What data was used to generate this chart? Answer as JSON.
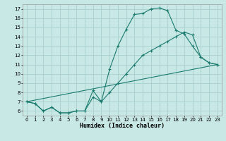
{
  "xlabel": "Humidex (Indice chaleur)",
  "bg_color": "#c8e8e5",
  "grid_color": "#a8d0cd",
  "line_color": "#1a7a6e",
  "xlim": [
    -0.5,
    23.5
  ],
  "ylim": [
    5.5,
    17.5
  ],
  "xticks": [
    0,
    1,
    2,
    3,
    4,
    5,
    6,
    7,
    8,
    9,
    10,
    11,
    12,
    13,
    14,
    15,
    16,
    17,
    18,
    19,
    20,
    21,
    22,
    23
  ],
  "yticks": [
    6,
    7,
    8,
    9,
    10,
    11,
    12,
    13,
    14,
    15,
    16,
    17
  ],
  "line1_x": [
    0,
    1,
    2,
    3,
    4,
    5,
    6,
    7,
    8,
    9,
    10,
    11,
    12,
    13,
    14,
    15,
    16,
    17,
    18,
    19,
    20,
    21,
    22,
    23
  ],
  "line1_y": [
    7.0,
    6.8,
    6.0,
    6.4,
    5.8,
    5.8,
    6.0,
    6.0,
    8.2,
    7.0,
    10.5,
    13.0,
    14.8,
    16.4,
    16.5,
    17.0,
    17.1,
    16.8,
    14.7,
    14.3,
    13.0,
    11.8,
    11.2,
    11.0
  ],
  "line2_x": [
    0,
    1,
    2,
    3,
    4,
    5,
    6,
    7,
    8,
    9,
    10,
    11,
    12,
    13,
    14,
    15,
    16,
    17,
    18,
    19,
    20,
    21,
    22,
    23
  ],
  "line2_y": [
    7.0,
    6.8,
    6.0,
    6.4,
    5.8,
    5.8,
    6.0,
    6.0,
    7.5,
    7.0,
    8.0,
    9.0,
    10.0,
    11.0,
    12.0,
    12.5,
    13.0,
    13.5,
    14.0,
    14.5,
    14.2,
    11.8,
    11.2,
    11.0
  ],
  "line3_x": [
    0,
    23
  ],
  "line3_y": [
    7.0,
    11.0
  ]
}
